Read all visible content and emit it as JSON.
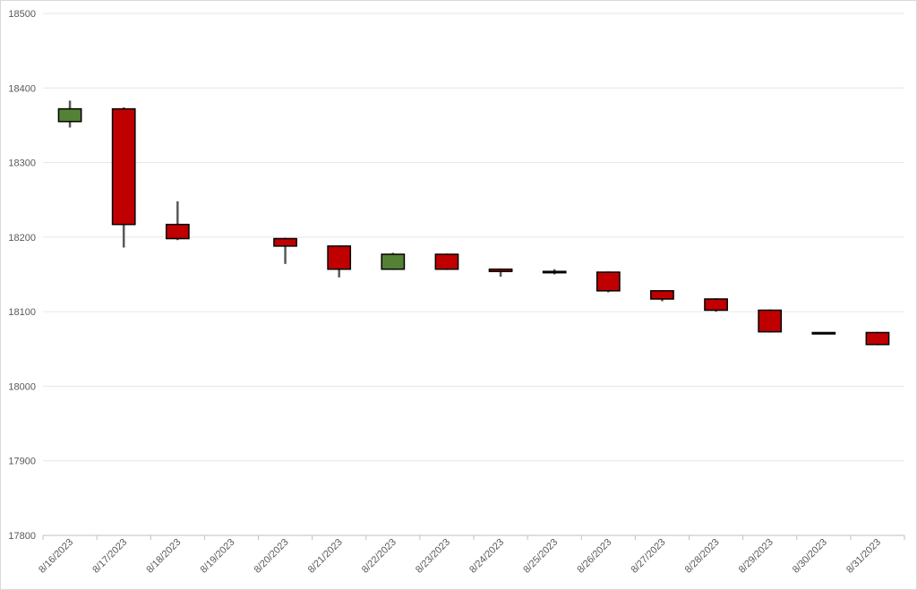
{
  "chart_data": {
    "type": "candlestick",
    "title": "",
    "xlabel": "",
    "ylabel": "",
    "ylim": [
      17800,
      18500
    ],
    "yticks": [
      17800,
      17900,
      18000,
      18100,
      18200,
      18300,
      18400,
      18500
    ],
    "grid": true,
    "legend": "none",
    "colors": {
      "up": "#548235",
      "down": "#c00000",
      "outline": "#000000",
      "wick": "#595959",
      "grid": "#e6e6e6"
    },
    "categories": [
      "8/16/2023",
      "8/17/2023",
      "8/18/2023",
      "8/19/2023",
      "8/20/2023",
      "8/21/2023",
      "8/22/2023",
      "8/23/2023",
      "8/24/2023",
      "8/25/2023",
      "8/26/2023",
      "8/27/2023",
      "8/28/2023",
      "8/29/2023",
      "8/30/2023",
      "8/31/2023"
    ],
    "series": [
      {
        "open": 18355,
        "high": 18383,
        "low": 18347,
        "close": 18372
      },
      {
        "open": 18372,
        "high": 18374,
        "low": 18186,
        "close": 18217
      },
      {
        "open": 18217,
        "high": 18248,
        "low": 18196,
        "close": 18198
      },
      null,
      {
        "open": 18198,
        "high": 18199,
        "low": 18164,
        "close": 18188
      },
      {
        "open": 18188,
        "high": 18189,
        "low": 18146,
        "close": 18157
      },
      {
        "open": 18157,
        "high": 18179,
        "low": 18156,
        "close": 18177
      },
      {
        "open": 18177,
        "high": 18178,
        "low": 18156,
        "close": 18157
      },
      {
        "open": 18157,
        "high": 18158,
        "low": 18147,
        "close": 18154
      },
      {
        "open": 18154,
        "high": 18157,
        "low": 18150,
        "close": 18153
      },
      {
        "open": 18153,
        "high": 18154,
        "low": 18126,
        "close": 18128
      },
      {
        "open": 18128,
        "high": 18129,
        "low": 18114,
        "close": 18117
      },
      {
        "open": 18117,
        "high": 18118,
        "low": 18100,
        "close": 18102
      },
      {
        "open": 18102,
        "high": 18103,
        "low": 18072,
        "close": 18073
      },
      {
        "open": 18072,
        "high": 18072,
        "low": 18071,
        "close": 18071
      },
      {
        "open": 18072,
        "high": 18073,
        "low": 18055,
        "close": 18056
      }
    ]
  }
}
